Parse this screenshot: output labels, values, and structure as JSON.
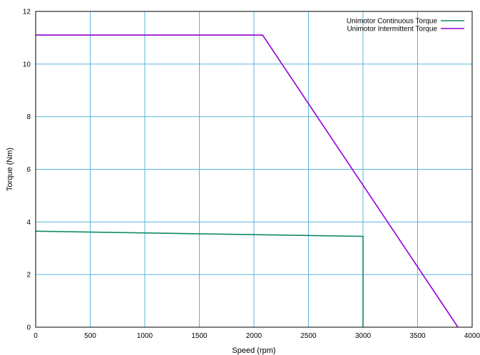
{
  "chart_data": {
    "type": "line",
    "xlabel": "Speed (rpm)",
    "ylabel": "Torque (Nm)",
    "xlim": [
      0,
      4000
    ],
    "ylim": [
      0,
      12
    ],
    "xticks": [
      "0",
      "500",
      "1000",
      "1500",
      "2000",
      "2500",
      "3000",
      "3500",
      "4000"
    ],
    "yticks": [
      "0",
      "2",
      "4",
      "6",
      "8",
      "10",
      "12"
    ],
    "grid": true,
    "legend_position": "top-right",
    "series": [
      {
        "name": "Unimotor Continuous Torque",
        "color": "#118a66",
        "x": [
          0,
          3000,
          3000
        ],
        "y": [
          3.65,
          3.45,
          0
        ]
      },
      {
        "name": "Unimotor Intermittent Torque",
        "color": "#9400d3",
        "x": [
          0,
          2080,
          3870
        ],
        "y": [
          11.1,
          11.1,
          0
        ]
      }
    ]
  }
}
